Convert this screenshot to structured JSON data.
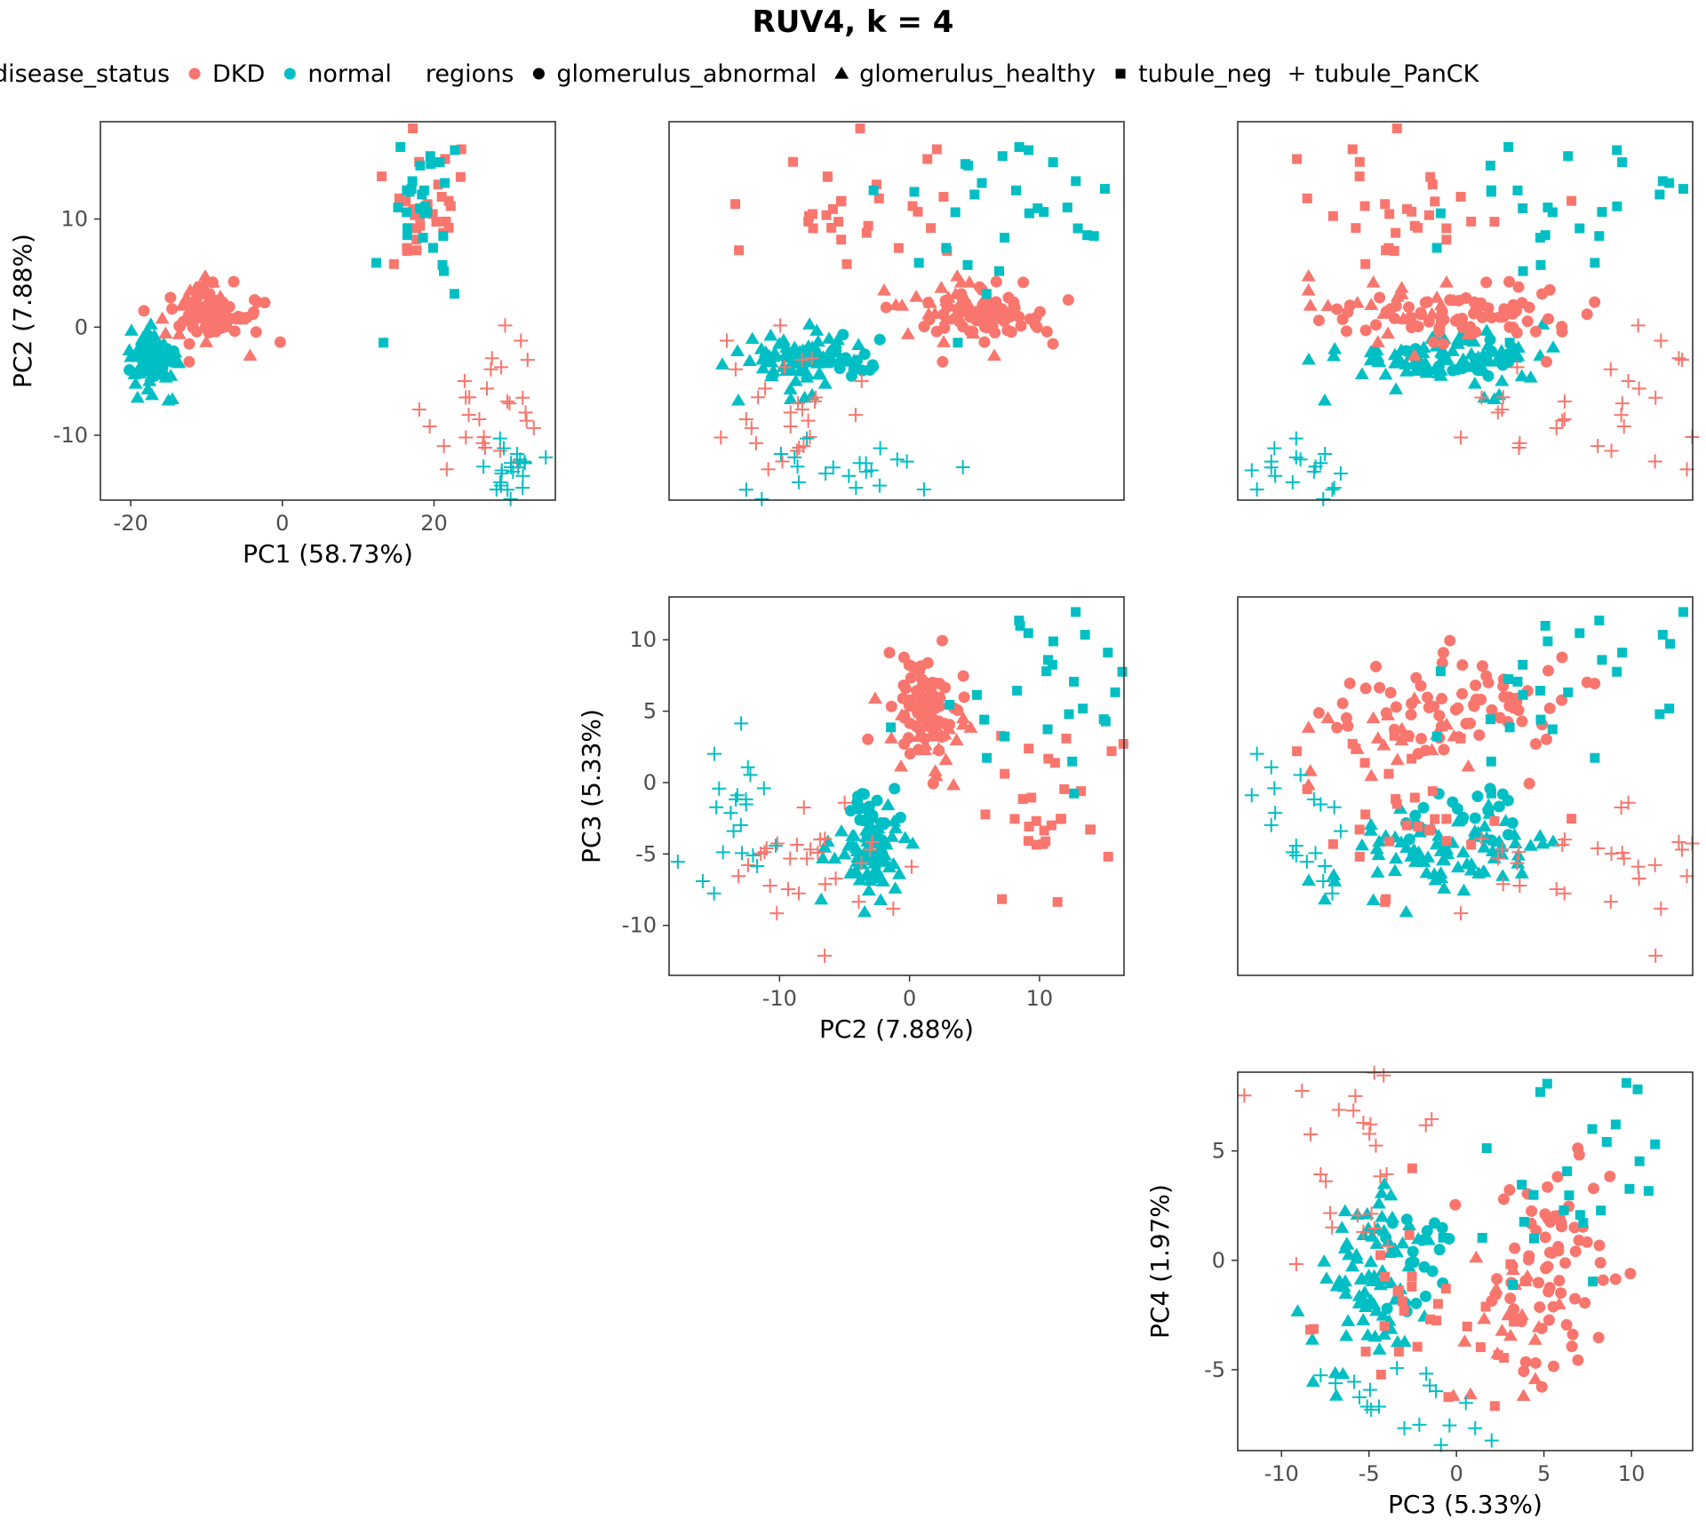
{
  "title": "RUV4, k = 4",
  "legend": {
    "color_title": "disease_status",
    "color_entries": [
      {
        "label": "DKD",
        "color": "#F8766D"
      },
      {
        "label": "normal",
        "color": "#00BFC4"
      }
    ],
    "shape_title": "regions",
    "shape_entries": [
      {
        "label": "glomerulus_abnormal",
        "shape": "circle"
      },
      {
        "label": "glomerulus_healthy",
        "shape": "triangle"
      },
      {
        "label": "tubule_neg",
        "shape": "square"
      },
      {
        "label": "tubule_PanCK",
        "shape": "plus"
      }
    ]
  },
  "axis_labels": {
    "PC1": "PC1 (58.73%)",
    "PC2": "PC2 (7.88%)",
    "PC3": "PC3 (5.33%)",
    "PC4": "PC4 (1.97%)"
  },
  "chart_data": {
    "type": "scatter",
    "grid": false,
    "legend_position": "top",
    "panels": [
      {
        "row": 1,
        "col": 1,
        "x": "PC1",
        "y": "PC2",
        "xlim": [
          -24,
          36
        ],
        "ylim": [
          -16,
          19
        ],
        "xticks": [
          -20,
          0,
          20
        ],
        "yticks": [
          -10,
          0,
          10
        ],
        "show_xlabel": true,
        "show_ylabel": true
      },
      {
        "row": 1,
        "col": 2,
        "x": "PC3",
        "y": "PC2",
        "xlim": [
          -12,
          13
        ],
        "ylim": [
          -16,
          19
        ],
        "xticks": [],
        "yticks": [],
        "show_xlabel": false,
        "show_ylabel": false
      },
      {
        "row": 1,
        "col": 3,
        "x": "PC4",
        "y": "PC2",
        "xlim": [
          -9,
          9
        ],
        "ylim": [
          -16,
          19
        ],
        "xticks": [],
        "yticks": [],
        "show_xlabel": false,
        "show_ylabel": false
      },
      {
        "row": 2,
        "col": 2,
        "x": "PC2",
        "y": "PC3",
        "xlim": [
          -18.5,
          16.5
        ],
        "ylim": [
          -13.5,
          13
        ],
        "xticks": [
          -10,
          0,
          10
        ],
        "yticks": [
          -10,
          -5,
          0,
          5,
          10
        ],
        "show_xlabel": true,
        "show_ylabel": true
      },
      {
        "row": 2,
        "col": 3,
        "x": "PC4",
        "y": "PC3",
        "xlim": [
          -9,
          9
        ],
        "ylim": [
          -13.5,
          13
        ],
        "xticks": [],
        "yticks": [],
        "show_xlabel": false,
        "show_ylabel": false
      },
      {
        "row": 3,
        "col": 3,
        "x": "PC3",
        "y": "PC4",
        "xlim": [
          -12.5,
          13.5
        ],
        "ylim": [
          -8.7,
          8.6
        ],
        "xticks": [
          -10,
          -5,
          0,
          5,
          10
        ],
        "yticks": [
          -5,
          0,
          5
        ],
        "show_xlabel": true,
        "show_ylabel": true
      }
    ],
    "groups": [
      {
        "status": "normal",
        "region": "glomerulus_healthy",
        "n": 80,
        "PC1": [
          -17,
          1.6
        ],
        "PC2": [
          -3.3,
          1.3
        ],
        "PC3": [
          -5,
          1.6
        ],
        "PC4": [
          -0.5,
          2.2
        ]
      },
      {
        "status": "normal",
        "region": "glomerulus_abnormal",
        "n": 20,
        "PC1": [
          -17,
          1.6
        ],
        "PC2": [
          -2.5,
          1.2
        ],
        "PC3": [
          -2.5,
          1.6
        ],
        "PC4": [
          0,
          1.8
        ]
      },
      {
        "status": "DKD",
        "region": "glomerulus_abnormal",
        "n": 75,
        "PC1": [
          -9,
          3.2
        ],
        "PC2": [
          1.2,
          1.3
        ],
        "PC3": [
          5.5,
          1.6
        ],
        "PC4": [
          0,
          2.2
        ]
      },
      {
        "status": "DKD",
        "region": "glomerulus_healthy",
        "n": 22,
        "PC1": [
          -11,
          3
        ],
        "PC2": [
          1.2,
          1.5
        ],
        "PC3": [
          3,
          1.6
        ],
        "PC4": [
          -2.5,
          2
        ]
      },
      {
        "status": "DKD",
        "region": "tubule_neg",
        "n": 30,
        "PC1": [
          18,
          3.5
        ],
        "PC2": [
          11,
          3.5
        ],
        "PC3": [
          -1,
          3.5
        ],
        "PC4": [
          -3,
          2.2
        ]
      },
      {
        "status": "normal",
        "region": "tubule_neg",
        "n": 30,
        "PC1": [
          19,
          2.5
        ],
        "PC2": [
          10,
          4.5
        ],
        "PC3": [
          7,
          3.5
        ],
        "PC4": [
          4,
          3
        ]
      },
      {
        "status": "DKD",
        "region": "tubule_PanCK",
        "n": 28,
        "PC1": [
          27,
          4
        ],
        "PC2": [
          -7,
          3
        ],
        "PC3": [
          -5,
          2.5
        ],
        "PC4": [
          5,
          2.5
        ]
      },
      {
        "status": "normal",
        "region": "tubule_PanCK",
        "n": 22,
        "PC1": [
          30,
          1.5
        ],
        "PC2": [
          -13,
          1.2
        ],
        "PC3": [
          -3,
          3
        ],
        "PC4": [
          -7,
          1.2
        ]
      }
    ]
  }
}
